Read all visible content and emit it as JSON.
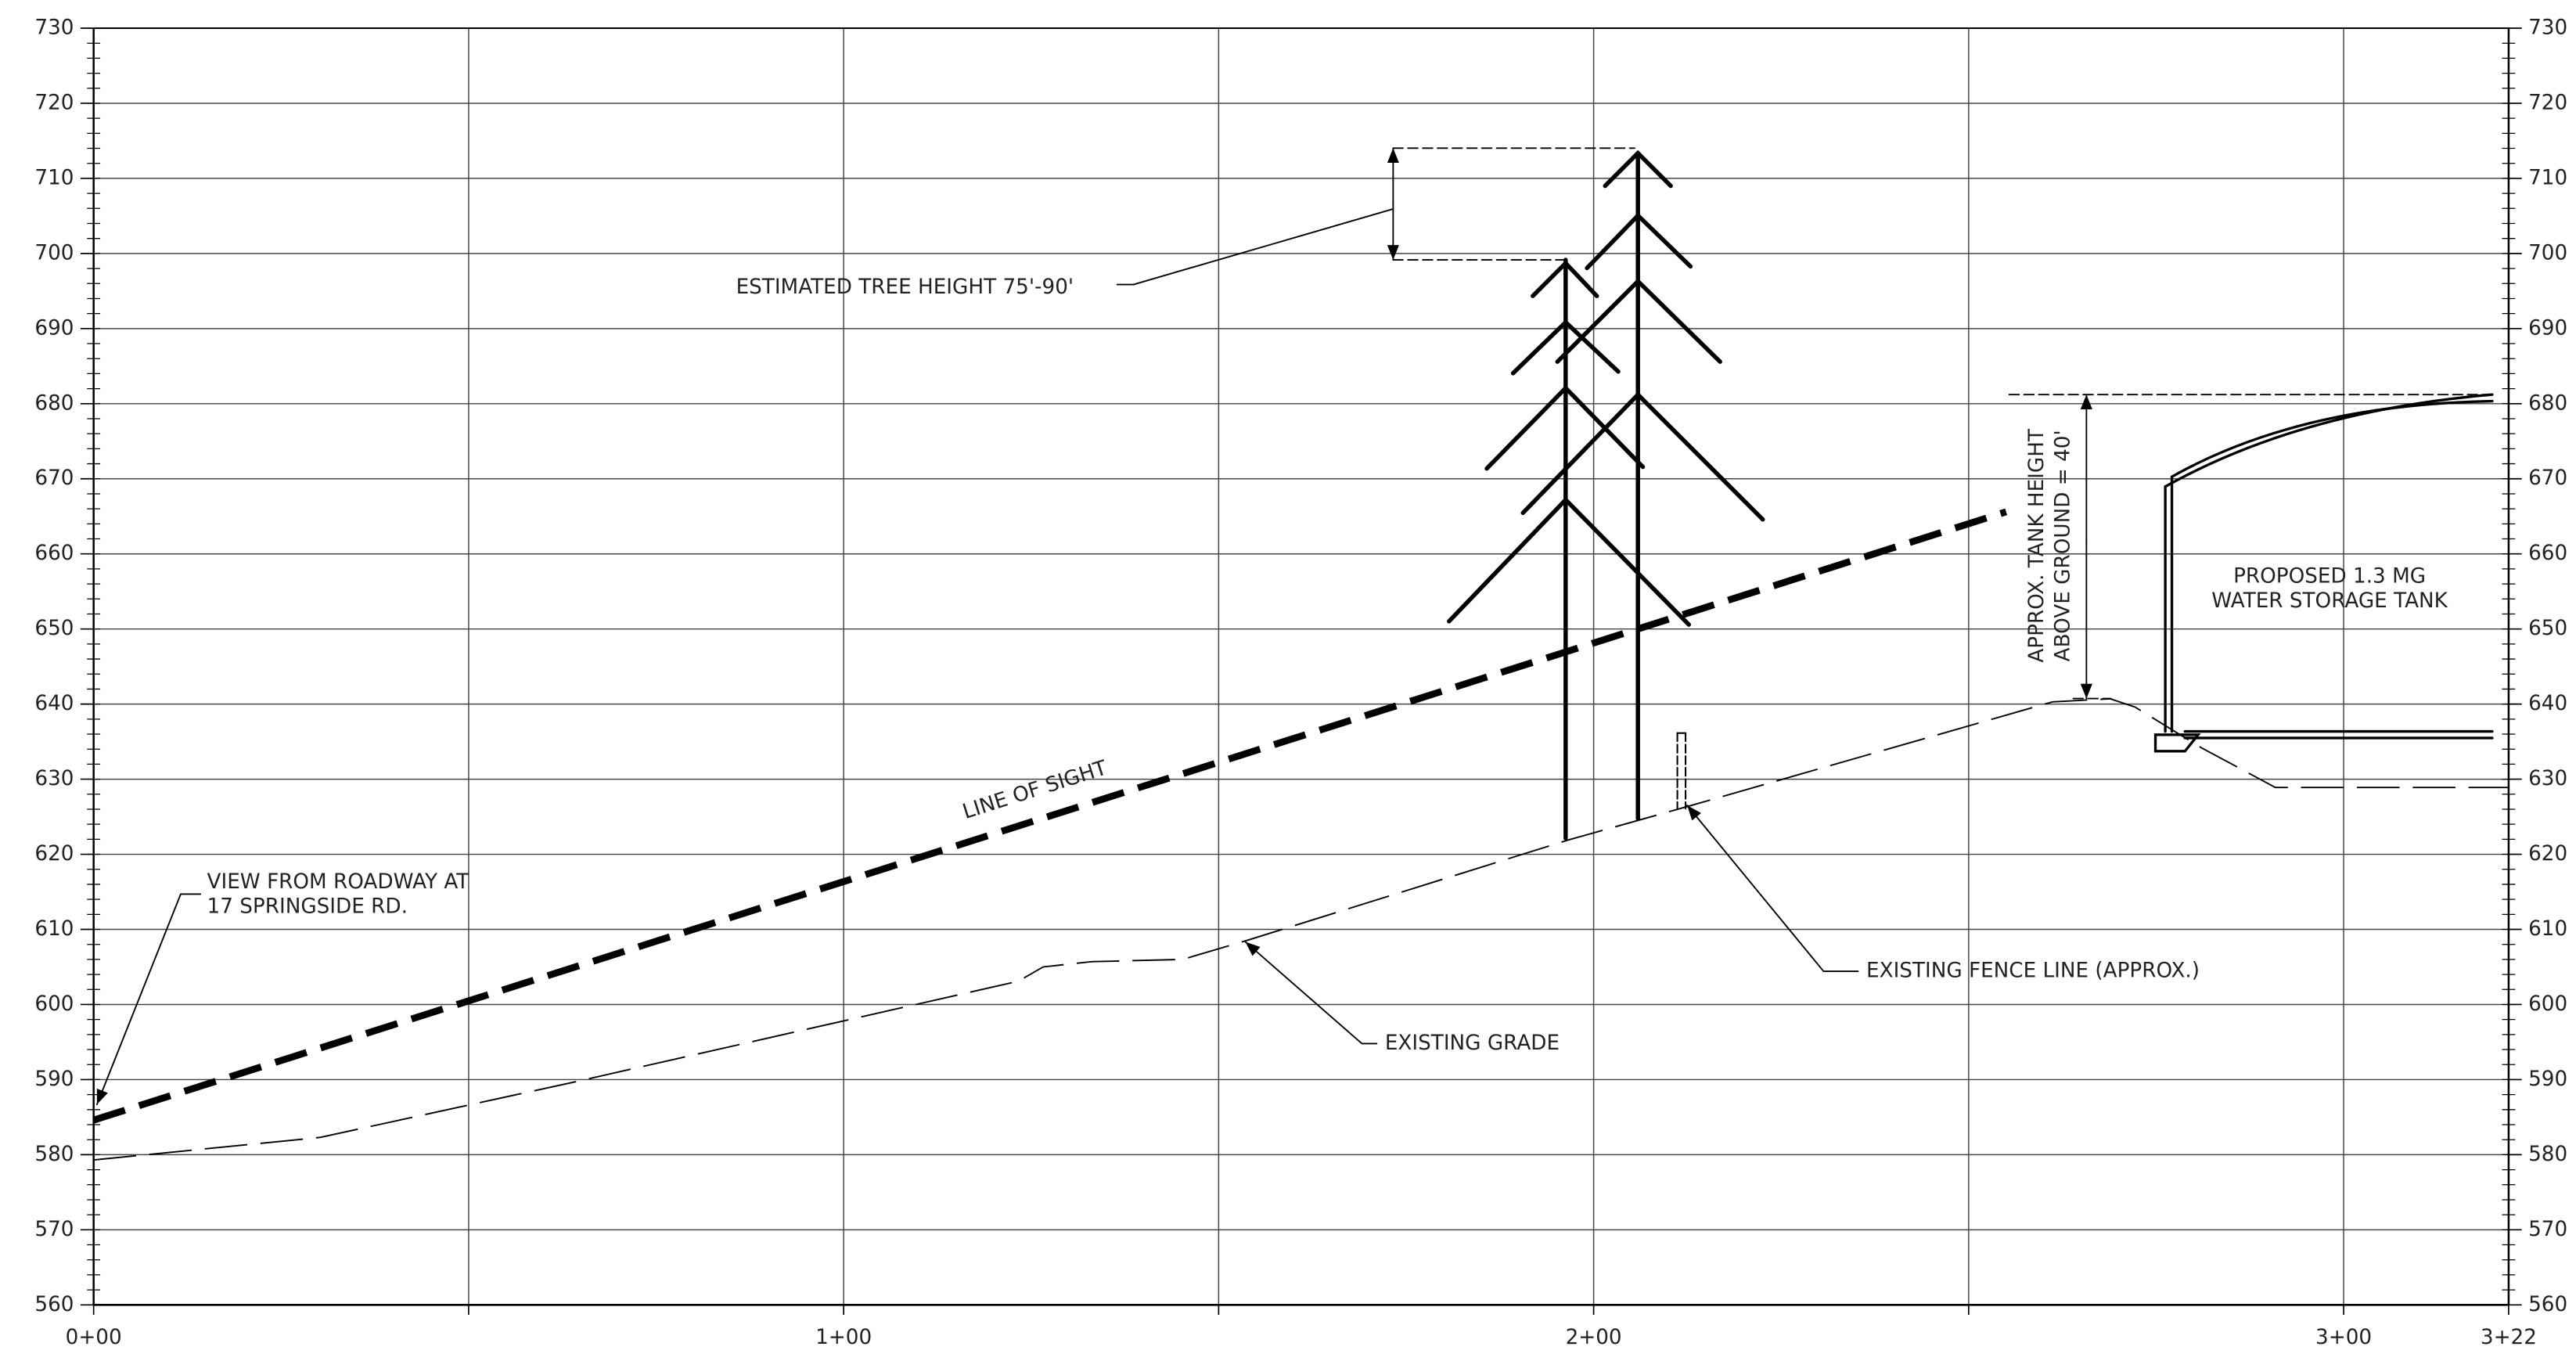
{
  "chart_data": {
    "type": "line",
    "xlim": [
      0,
      322
    ],
    "ylim": [
      560,
      730
    ],
    "xticks": [
      {
        "value": 0,
        "label": "0+00"
      },
      {
        "value": 50,
        "label": null
      },
      {
        "value": 100,
        "label": "1+00"
      },
      {
        "value": 150,
        "label": null
      },
      {
        "value": 200,
        "label": "2+00"
      },
      {
        "value": 250,
        "label": null
      },
      {
        "value": 300,
        "label": "3+00"
      },
      {
        "value": 322,
        "label": "3+22"
      }
    ],
    "yticks": [
      560,
      570,
      580,
      590,
      600,
      610,
      620,
      630,
      640,
      650,
      660,
      670,
      680,
      690,
      700,
      710,
      720,
      730
    ],
    "grid": true,
    "series": [
      {
        "name": "LINE OF SIGHT",
        "color": "#000000",
        "x": [
          0,
          255
        ],
        "values": [
          584.6,
          665.6
        ]
      },
      {
        "name": "EXISTING GRADE",
        "color": "#000000",
        "x": [
          0,
          30.2,
          64.2,
          123.3,
          126.6,
          133,
          145.2,
          154,
          196.6,
          213,
          261.2,
          268.9,
          272.2,
          281,
          290.9,
          322
        ],
        "values": [
          579.3,
          582.3,
          589.7,
          603.1,
          605,
          605.7,
          606,
          608.6,
          621.9,
          626.5,
          640.3,
          640.7,
          639.6,
          634.2,
          628.9,
          628.9
        ]
      }
    ],
    "annotations": [
      {
        "lines": [
          "ESTIMATED TREE HEIGHT 75'-90'"
        ]
      },
      {
        "lines": [
          "VIEW FROM ROADWAY AT",
          "17 SPRINGSIDE RD."
        ]
      },
      {
        "lines": [
          "EXISTING FENCE LINE (APPROX.)"
        ]
      },
      {
        "lines": [
          "APPROX. TANK HEIGHT",
          "ABOVE GROUND = 40'"
        ]
      },
      {
        "lines": [
          "PROPOSED 1.3 MG",
          "WATER STORAGE TANK"
        ]
      }
    ]
  }
}
